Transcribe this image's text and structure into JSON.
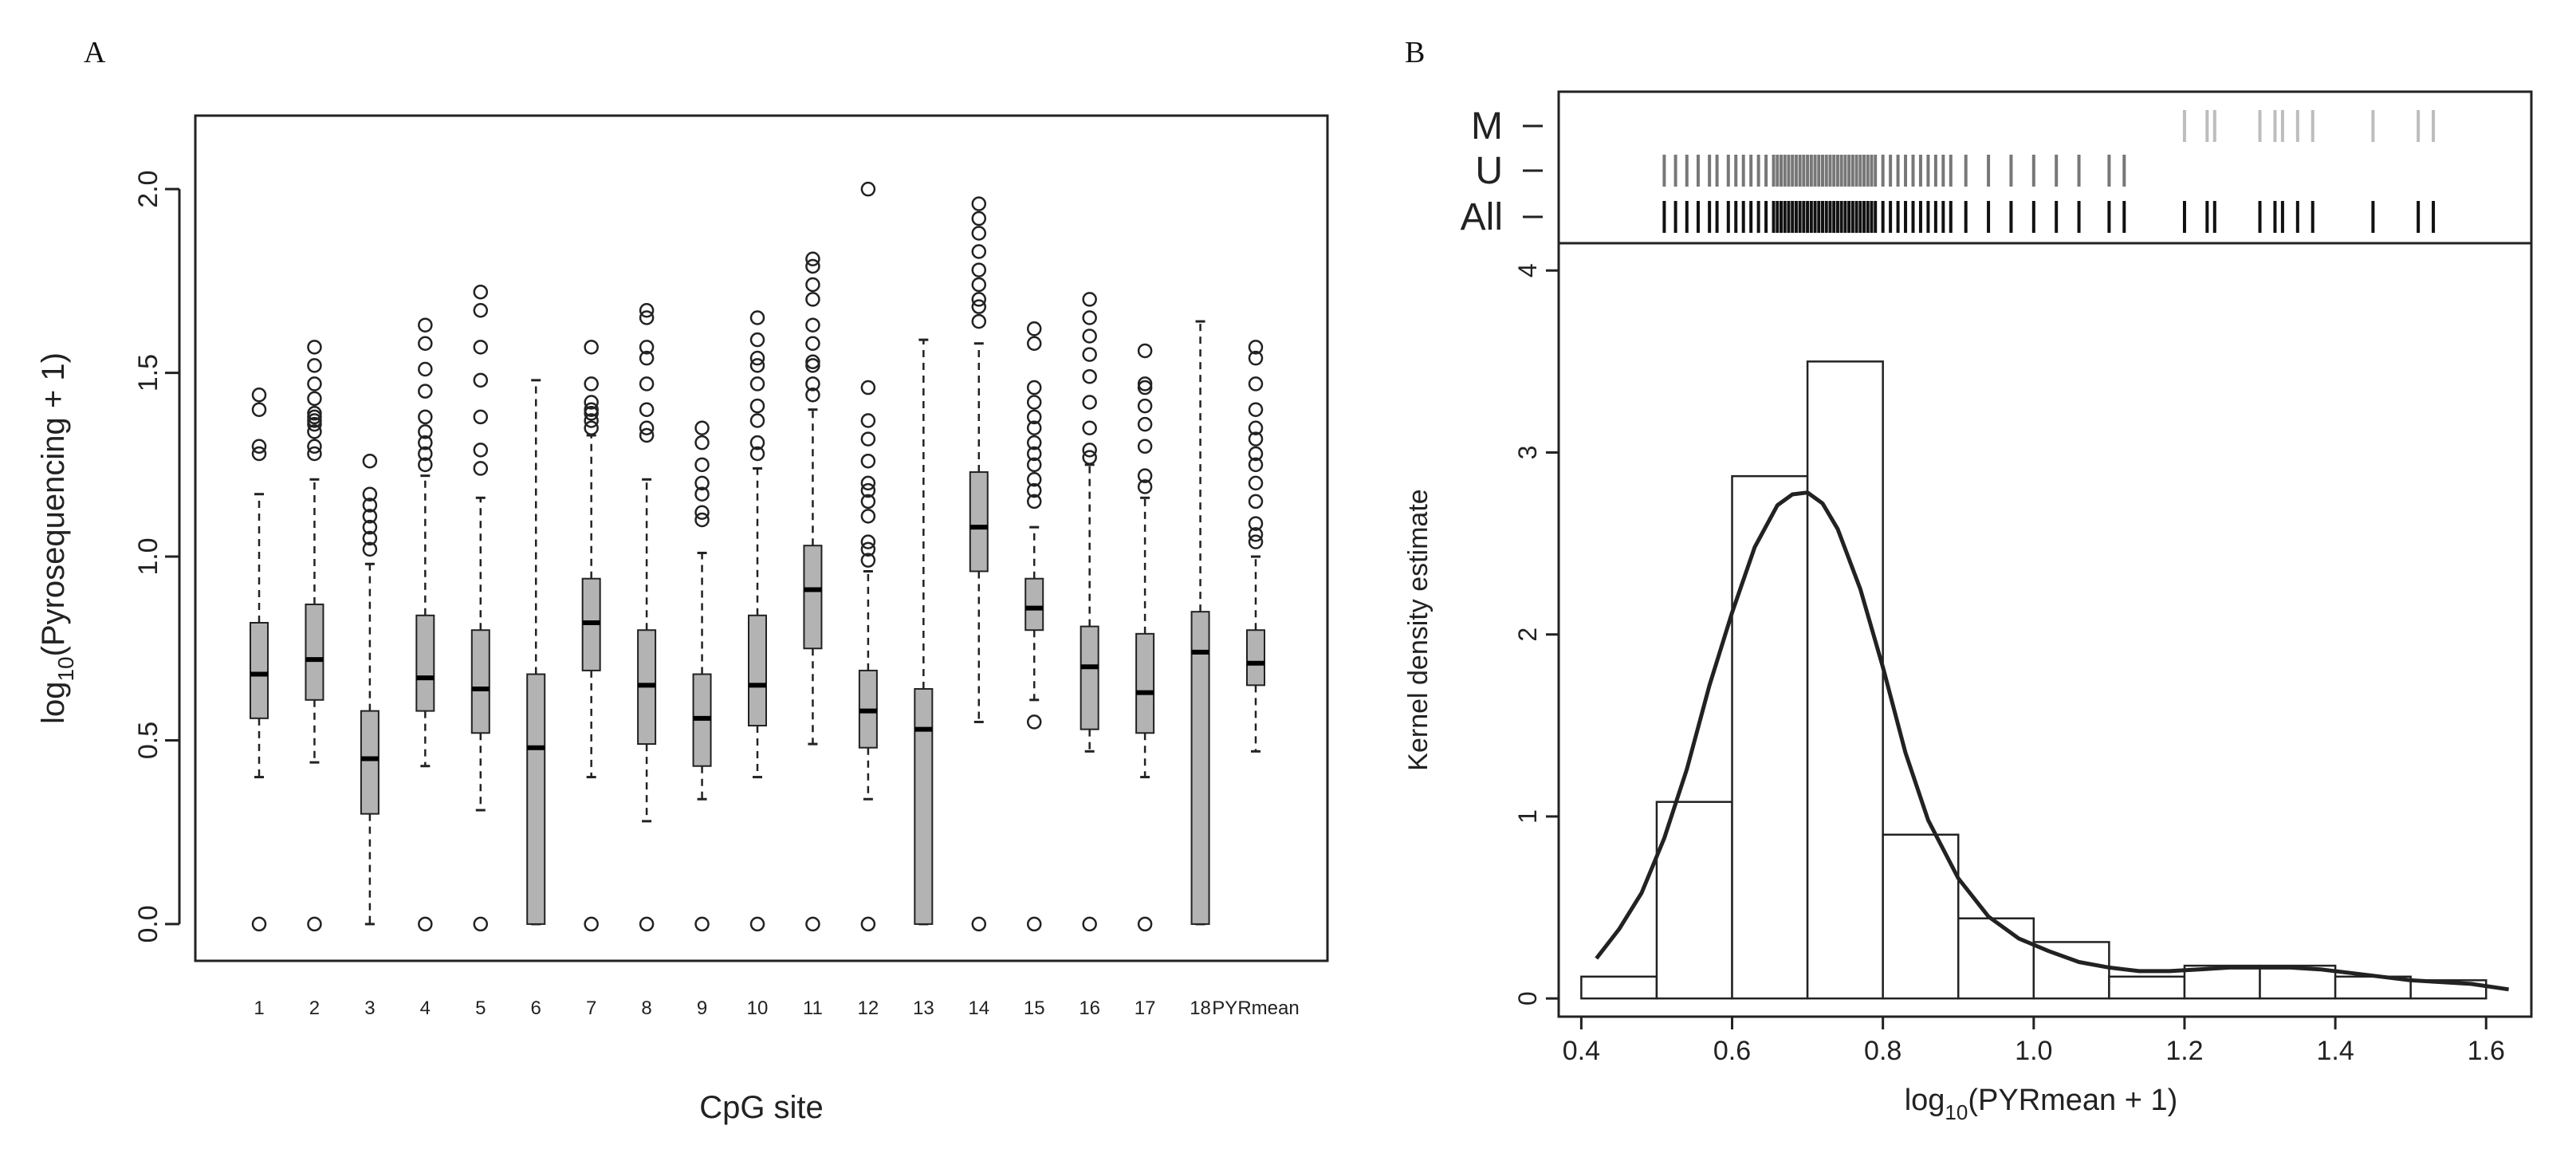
{
  "panels": {
    "a": {
      "label": "A"
    },
    "b": {
      "label": "B"
    }
  },
  "colors": {
    "box_fill": "#b3b3b3",
    "rug_m": "#bdbdbd",
    "rug_u": "#777777",
    "rug_all": "#111111",
    "line": "#222222"
  },
  "chart_data": [
    {
      "type": "boxplot",
      "panel": "A",
      "xlabel": "CpG site",
      "ylabel_main": "log",
      "ylabel_sub": "10",
      "ylabel_rest": "(Pyrosequencing + 1)",
      "ylim": [
        -0.1,
        2.2
      ],
      "yticks": [
        "0.0",
        "0.5",
        "1.0",
        "1.5",
        "2.0"
      ],
      "ytick_values": [
        0.0,
        0.5,
        1.0,
        1.5,
        2.0
      ],
      "categories": [
        "1",
        "2",
        "3",
        "4",
        "5",
        "6",
        "7",
        "8",
        "9",
        "10",
        "11",
        "12",
        "13",
        "14",
        "15",
        "16",
        "17",
        "18",
        "PYRmean"
      ],
      "boxes": [
        {
          "whisker_low": 0.4,
          "q1": 0.56,
          "median": 0.68,
          "q3": 0.82,
          "whisker_high": 1.17,
          "outliers": [
            0.0,
            1.28,
            1.3,
            1.4,
            1.44
          ]
        },
        {
          "whisker_low": 0.44,
          "q1": 0.61,
          "median": 0.72,
          "q3": 0.87,
          "whisker_high": 1.21,
          "outliers": [
            0.0,
            1.28,
            1.3,
            1.34,
            1.36,
            1.37,
            1.38,
            1.39,
            1.43,
            1.47,
            1.52,
            1.57
          ]
        },
        {
          "whisker_low": 0.0,
          "q1": 0.3,
          "median": 0.45,
          "q3": 0.58,
          "whisker_high": 0.98,
          "outliers": [
            1.02,
            1.05,
            1.08,
            1.11,
            1.14,
            1.17,
            1.26
          ]
        },
        {
          "whisker_low": 0.43,
          "q1": 0.58,
          "median": 0.67,
          "q3": 0.84,
          "whisker_high": 1.22,
          "outliers": [
            0.0,
            1.25,
            1.28,
            1.31,
            1.34,
            1.38,
            1.45,
            1.51,
            1.58,
            1.63
          ]
        },
        {
          "whisker_low": 0.31,
          "q1": 0.52,
          "median": 0.64,
          "q3": 0.8,
          "whisker_high": 1.16,
          "outliers": [
            0.0,
            1.24,
            1.29,
            1.38,
            1.48,
            1.57,
            1.67,
            1.72
          ]
        },
        {
          "whisker_low": 0.0,
          "q1": 0.0,
          "median": 0.48,
          "q3": 0.68,
          "whisker_high": 1.48,
          "outliers": []
        },
        {
          "whisker_low": 0.4,
          "q1": 0.69,
          "median": 0.82,
          "q3": 0.94,
          "whisker_high": 1.33,
          "outliers": [
            0.0,
            1.35,
            1.37,
            1.39,
            1.4,
            1.42,
            1.47,
            1.57
          ]
        },
        {
          "whisker_low": 0.28,
          "q1": 0.49,
          "median": 0.65,
          "q3": 0.8,
          "whisker_high": 1.21,
          "outliers": [
            0.0,
            1.33,
            1.35,
            1.4,
            1.47,
            1.54,
            1.57,
            1.65,
            1.67
          ]
        },
        {
          "whisker_low": 0.34,
          "q1": 0.43,
          "median": 0.56,
          "q3": 0.68,
          "whisker_high": 1.01,
          "outliers": [
            0.0,
            1.1,
            1.12,
            1.17,
            1.2,
            1.25,
            1.31,
            1.35
          ]
        },
        {
          "whisker_low": 0.4,
          "q1": 0.54,
          "median": 0.65,
          "q3": 0.84,
          "whisker_high": 1.24,
          "outliers": [
            0.0,
            1.28,
            1.31,
            1.37,
            1.41,
            1.47,
            1.52,
            1.54,
            1.59,
            1.65
          ]
        },
        {
          "whisker_low": 0.49,
          "q1": 0.75,
          "median": 0.91,
          "q3": 1.03,
          "whisker_high": 1.4,
          "outliers": [
            0.0,
            1.44,
            1.47,
            1.52,
            1.53,
            1.58,
            1.63,
            1.7,
            1.74,
            1.79,
            1.81
          ]
        },
        {
          "whisker_low": 0.34,
          "q1": 0.48,
          "median": 0.58,
          "q3": 0.69,
          "whisker_high": 0.96,
          "outliers": [
            0.0,
            0.99,
            1.02,
            1.04,
            1.11,
            1.15,
            1.18,
            1.2,
            1.26,
            1.32,
            1.37,
            1.46,
            2.0
          ]
        },
        {
          "whisker_low": 0.0,
          "q1": 0.0,
          "median": 0.53,
          "q3": 0.64,
          "whisker_high": 1.59,
          "outliers": []
        },
        {
          "whisker_low": 0.55,
          "q1": 0.96,
          "median": 1.08,
          "q3": 1.23,
          "whisker_high": 1.58,
          "outliers": [
            0.0,
            1.64,
            1.68,
            1.7,
            1.74,
            1.78,
            1.83,
            1.88,
            1.92,
            1.96
          ]
        },
        {
          "whisker_low": 0.61,
          "q1": 0.8,
          "median": 0.86,
          "q3": 0.94,
          "whisker_high": 1.08,
          "outliers": [
            0.0,
            0.55,
            1.15,
            1.18,
            1.21,
            1.25,
            1.28,
            1.31,
            1.35,
            1.38,
            1.42,
            1.46,
            1.58,
            1.62
          ]
        },
        {
          "whisker_low": 0.47,
          "q1": 0.53,
          "median": 0.7,
          "q3": 0.81,
          "whisker_high": 1.25,
          "outliers": [
            0.0,
            1.27,
            1.29,
            1.35,
            1.42,
            1.49,
            1.55,
            1.6,
            1.65,
            1.7
          ]
        },
        {
          "whisker_low": 0.4,
          "q1": 0.52,
          "median": 0.63,
          "q3": 0.79,
          "whisker_high": 1.16,
          "outliers": [
            0.0,
            1.19,
            1.22,
            1.3,
            1.36,
            1.41,
            1.46,
            1.47,
            1.56
          ]
        },
        {
          "whisker_low": 0.0,
          "q1": 0.0,
          "median": 0.74,
          "q3": 0.85,
          "whisker_high": 1.64,
          "outliers": []
        },
        {
          "whisker_low": 0.47,
          "q1": 0.65,
          "median": 0.71,
          "q3": 0.8,
          "whisker_high": 1.0,
          "outliers": [
            1.04,
            1.06,
            1.09,
            1.15,
            1.2,
            1.25,
            1.28,
            1.32,
            1.35,
            1.4,
            1.47,
            1.54,
            1.57
          ]
        }
      ]
    },
    {
      "type": "histogram",
      "panel": "B",
      "xlabel_main": "log",
      "xlabel_sub": "10",
      "xlabel_rest": "(PYRmean + 1)",
      "ylabel": "Kernel density estimate",
      "xlim": [
        0.37,
        1.66
      ],
      "ylim": [
        -0.1,
        4.15
      ],
      "xticks": [
        "0.4",
        "0.6",
        "0.8",
        "1.0",
        "1.2",
        "1.4",
        "1.6"
      ],
      "xtick_values": [
        0.4,
        0.6,
        0.8,
        1.0,
        1.2,
        1.4,
        1.6
      ],
      "yticks": [
        "0",
        "1",
        "2",
        "3",
        "4"
      ],
      "ytick_values": [
        0,
        1,
        2,
        3,
        4
      ],
      "bins": [
        {
          "x0": 0.4,
          "x1": 0.5,
          "density": 0.12
        },
        {
          "x0": 0.5,
          "x1": 0.6,
          "density": 1.08
        },
        {
          "x0": 0.6,
          "x1": 0.7,
          "density": 2.87
        },
        {
          "x0": 0.7,
          "x1": 0.8,
          "density": 3.5
        },
        {
          "x0": 0.8,
          "x1": 0.9,
          "density": 0.9
        },
        {
          "x0": 0.9,
          "x1": 1.0,
          "density": 0.44
        },
        {
          "x0": 1.0,
          "x1": 1.1,
          "density": 0.31
        },
        {
          "x0": 1.1,
          "x1": 1.2,
          "density": 0.12
        },
        {
          "x0": 1.2,
          "x1": 1.3,
          "density": 0.18
        },
        {
          "x0": 1.3,
          "x1": 1.4,
          "density": 0.18
        },
        {
          "x0": 1.4,
          "x1": 1.5,
          "density": 0.12
        },
        {
          "x0": 1.5,
          "x1": 1.6,
          "density": 0.1
        }
      ],
      "kde": {
        "x": [
          0.42,
          0.45,
          0.48,
          0.51,
          0.54,
          0.57,
          0.6,
          0.63,
          0.66,
          0.68,
          0.7,
          0.72,
          0.74,
          0.77,
          0.8,
          0.83,
          0.86,
          0.9,
          0.94,
          0.98,
          1.02,
          1.06,
          1.1,
          1.14,
          1.18,
          1.22,
          1.26,
          1.3,
          1.34,
          1.38,
          1.42,
          1.46,
          1.5,
          1.54,
          1.58,
          1.63
        ],
        "y": [
          0.22,
          0.38,
          0.58,
          0.88,
          1.26,
          1.72,
          2.12,
          2.48,
          2.71,
          2.77,
          2.78,
          2.72,
          2.58,
          2.25,
          1.82,
          1.35,
          0.98,
          0.66,
          0.45,
          0.33,
          0.26,
          0.2,
          0.17,
          0.15,
          0.15,
          0.16,
          0.17,
          0.17,
          0.17,
          0.16,
          0.14,
          0.12,
          0.1,
          0.09,
          0.08,
          0.05
        ]
      },
      "rug": {
        "rows": [
          "M",
          "U",
          "All"
        ],
        "M": [
          1.2,
          1.23,
          1.24,
          1.3,
          1.32,
          1.33,
          1.35,
          1.37,
          1.45,
          1.51,
          1.53
        ],
        "U": [
          0.51,
          0.525,
          0.54,
          0.555,
          0.57,
          0.58,
          0.595,
          0.605,
          0.615,
          0.625,
          0.635,
          0.645,
          0.655,
          0.66,
          0.665,
          0.67,
          0.675,
          0.68,
          0.685,
          0.69,
          0.695,
          0.7,
          0.705,
          0.71,
          0.715,
          0.72,
          0.725,
          0.73,
          0.735,
          0.74,
          0.745,
          0.75,
          0.755,
          0.76,
          0.765,
          0.77,
          0.775,
          0.78,
          0.785,
          0.79,
          0.8,
          0.81,
          0.82,
          0.83,
          0.84,
          0.85,
          0.86,
          0.87,
          0.88,
          0.89,
          0.91,
          0.94,
          0.97,
          1.0,
          1.03,
          1.06,
          1.1,
          1.12
        ]
      }
    }
  ]
}
